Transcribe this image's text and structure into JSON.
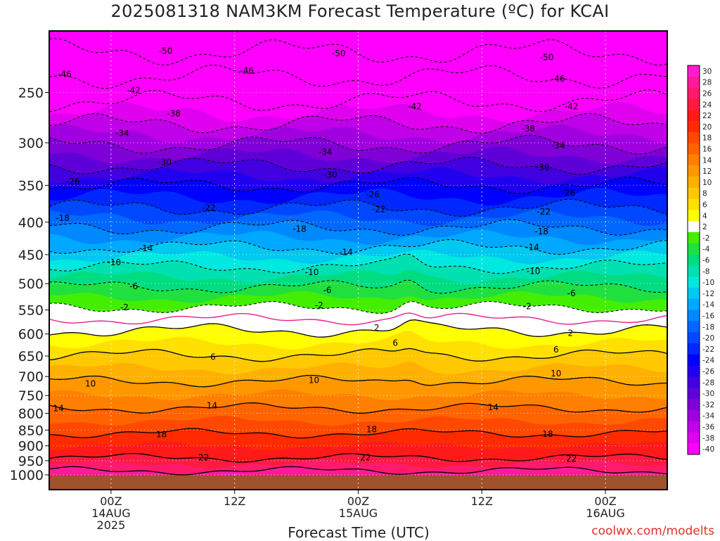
{
  "title": "2025081318 NAM3KM Forecast Temperature (ºC) for KCAI",
  "xlabel": "Forecast Time (UTC)",
  "credit": "coolwx.com/modelts",
  "chart_data": {
    "type": "heatmap",
    "title": "2025081318 NAM3KM Forecast Temperature (ºC) for KCAI",
    "xlabel": "Forecast Time (UTC)",
    "ylabel": "",
    "x_ticks": [
      {
        "hour": 6,
        "lines": [
          "00Z",
          "14AUG",
          "2025"
        ]
      },
      {
        "hour": 18,
        "lines": [
          "12Z"
        ]
      },
      {
        "hour": 30,
        "lines": [
          "00Z",
          "15AUG"
        ]
      },
      {
        "hour": 42,
        "lines": [
          "12Z"
        ]
      },
      {
        "hour": 54,
        "lines": [
          "00Z",
          "16AUG"
        ]
      }
    ],
    "xlim": [
      0,
      60
    ],
    "y_ticks": [
      250,
      300,
      350,
      400,
      450,
      500,
      550,
      600,
      650,
      700,
      750,
      800,
      850,
      900,
      950,
      1000
    ],
    "ylim": [
      1000,
      200
    ],
    "y_scale": "log-pressure",
    "colorbar": {
      "labels": [
        30,
        28,
        26,
        24,
        22,
        20,
        18,
        16,
        14,
        12,
        10,
        8,
        6,
        4,
        2,
        -2,
        -4,
        -6,
        -8,
        -10,
        -12,
        -14,
        -16,
        -18,
        -20,
        -22,
        -24,
        -26,
        -28,
        -30,
        -32,
        -34,
        -36,
        -38,
        -40
      ],
      "colors": [
        "#ff1cd2",
        "#ff1a9c",
        "#ff1a6e",
        "#ff1a40",
        "#ff1a1a",
        "#ff2a00",
        "#ff4800",
        "#ff6400",
        "#ff8000",
        "#ff9800",
        "#ffb000",
        "#ffc800",
        "#ffe000",
        "#ffff00",
        "#ffffff",
        "#44ee00",
        "#20e040",
        "#00dc80",
        "#00e0b0",
        "#00e8e0",
        "#00c8f0",
        "#00a8ff",
        "#0088ff",
        "#0068ff",
        "#0048ff",
        "#0028ff",
        "#0000ff",
        "#2000ee",
        "#4000e0",
        "#6000d8",
        "#8000d8",
        "#a000e0",
        "#c000e8",
        "#e000f0",
        "#ff00ff"
      ]
    },
    "contour_labels": [
      {
        "value": "-50",
        "h": 11.3,
        "p": 215
      },
      {
        "value": "-50",
        "h": 28.1,
        "p": 217
      },
      {
        "value": "-50",
        "h": 48.3,
        "p": 220
      },
      {
        "value": "-46",
        "h": 1.5,
        "p": 234
      },
      {
        "value": "-46",
        "h": 19.2,
        "p": 231
      },
      {
        "value": "-46",
        "h": 49.4,
        "p": 238
      },
      {
        "value": "-42",
        "h": 8.2,
        "p": 248
      },
      {
        "value": "-42",
        "h": 35.5,
        "p": 263
      },
      {
        "value": "-42",
        "h": 50.7,
        "p": 263
      },
      {
        "value": "-38",
        "h": 12.1,
        "p": 270
      },
      {
        "value": "-38",
        "h": 46.5,
        "p": 285
      },
      {
        "value": "-34",
        "h": 7.1,
        "p": 290
      },
      {
        "value": "-34",
        "h": 26.8,
        "p": 310
      },
      {
        "value": "-34",
        "h": 49.4,
        "p": 303
      },
      {
        "value": "-30",
        "h": 11.2,
        "p": 322
      },
      {
        "value": "-30",
        "h": 27.3,
        "p": 337
      },
      {
        "value": "-30",
        "h": 47.9,
        "p": 328
      },
      {
        "value": "-26",
        "h": 2.3,
        "p": 345
      },
      {
        "value": "-26",
        "h": 31.4,
        "p": 362
      },
      {
        "value": "-26",
        "h": 50.4,
        "p": 360
      },
      {
        "value": "-22",
        "h": 15.5,
        "p": 380
      },
      {
        "value": "-22",
        "h": 32.0,
        "p": 382
      },
      {
        "value": "-22",
        "h": 48.0,
        "p": 385
      },
      {
        "value": "-18",
        "h": 1.3,
        "p": 394
      },
      {
        "value": "-18",
        "h": 24.3,
        "p": 410
      },
      {
        "value": "-18",
        "h": 47.8,
        "p": 414
      },
      {
        "value": "-14",
        "h": 9.4,
        "p": 440
      },
      {
        "value": "-14",
        "h": 28.8,
        "p": 446
      },
      {
        "value": "-14",
        "h": 46.9,
        "p": 438
      },
      {
        "value": "-10",
        "h": 6.3,
        "p": 463
      },
      {
        "value": "-10",
        "h": 25.5,
        "p": 480
      },
      {
        "value": "-10",
        "h": 47.0,
        "p": 478
      },
      {
        "value": "-6",
        "h": 8.2,
        "p": 505
      },
      {
        "value": "-6",
        "h": 27.0,
        "p": 512
      },
      {
        "value": "-6",
        "h": 50.7,
        "p": 518
      },
      {
        "value": "-2",
        "h": 7.3,
        "p": 545
      },
      {
        "value": "-2",
        "h": 26.2,
        "p": 541
      },
      {
        "value": "-2",
        "h": 46.4,
        "p": 543
      },
      {
        "value": "2",
        "h": 31.8,
        "p": 587
      },
      {
        "value": "2",
        "h": 50.6,
        "p": 598
      },
      {
        "value": "6",
        "h": 15.9,
        "p": 652
      },
      {
        "value": "6",
        "h": 33.6,
        "p": 620
      },
      {
        "value": "6",
        "h": 49.2,
        "p": 635
      },
      {
        "value": "10",
        "h": 4.0,
        "p": 719
      },
      {
        "value": "10",
        "h": 25.7,
        "p": 710
      },
      {
        "value": "10",
        "h": 49.2,
        "p": 693
      },
      {
        "value": "14",
        "h": 0.9,
        "p": 786
      },
      {
        "value": "14",
        "h": 15.8,
        "p": 778
      },
      {
        "value": "14",
        "h": 43.1,
        "p": 783
      },
      {
        "value": "18",
        "h": 10.9,
        "p": 864
      },
      {
        "value": "18",
        "h": 31.3,
        "p": 848
      },
      {
        "value": "18",
        "h": 48.4,
        "p": 862
      },
      {
        "value": "22",
        "h": 15.0,
        "p": 940
      },
      {
        "value": "22",
        "h": 30.7,
        "p": 940
      },
      {
        "value": "22",
        "h": 50.7,
        "p": 943
      }
    ]
  }
}
